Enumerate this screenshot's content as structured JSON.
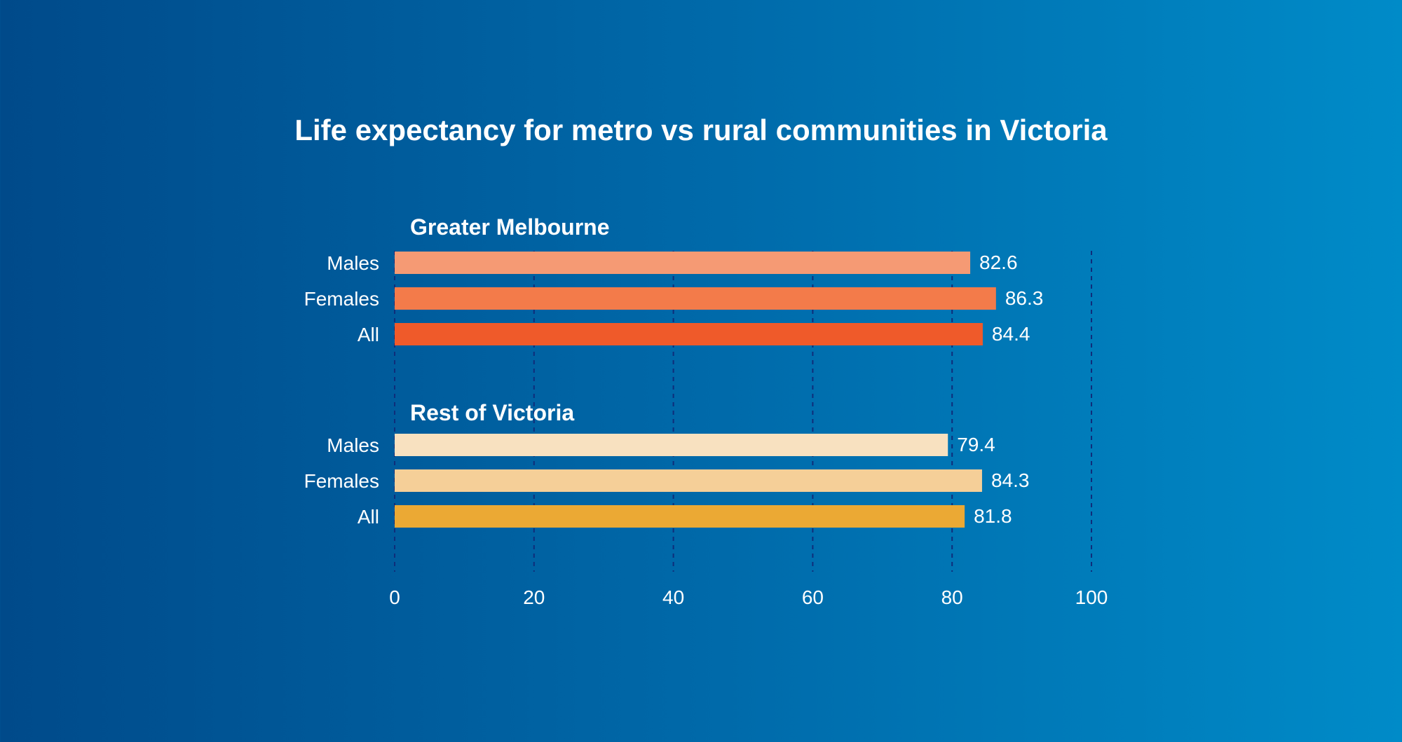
{
  "chart_data": {
    "type": "bar",
    "orientation": "horizontal",
    "title": "Life expectancy for metro vs rural communities in Victoria",
    "xlim": [
      0,
      100
    ],
    "xticks": [
      0,
      20,
      40,
      60,
      80,
      100
    ],
    "grid": true,
    "groups": [
      {
        "name": "Greater Melbourne",
        "categories": [
          "Males",
          "Females",
          "All"
        ],
        "values": [
          82.6,
          86.3,
          84.4
        ],
        "colors": [
          "#f59a74",
          "#f37b4a",
          "#ef5a2a"
        ]
      },
      {
        "name": "Rest of Victoria",
        "categories": [
          "Males",
          "Females",
          "All"
        ],
        "values": [
          79.4,
          84.3,
          81.8
        ],
        "colors": [
          "#f8e1c0",
          "#f5cf98",
          "#eba934"
        ]
      }
    ]
  },
  "colors": {
    "background_left": "#004a8a",
    "background_right": "#008bc8",
    "grid": "#0f2d7a",
    "text": "#ffffff"
  }
}
